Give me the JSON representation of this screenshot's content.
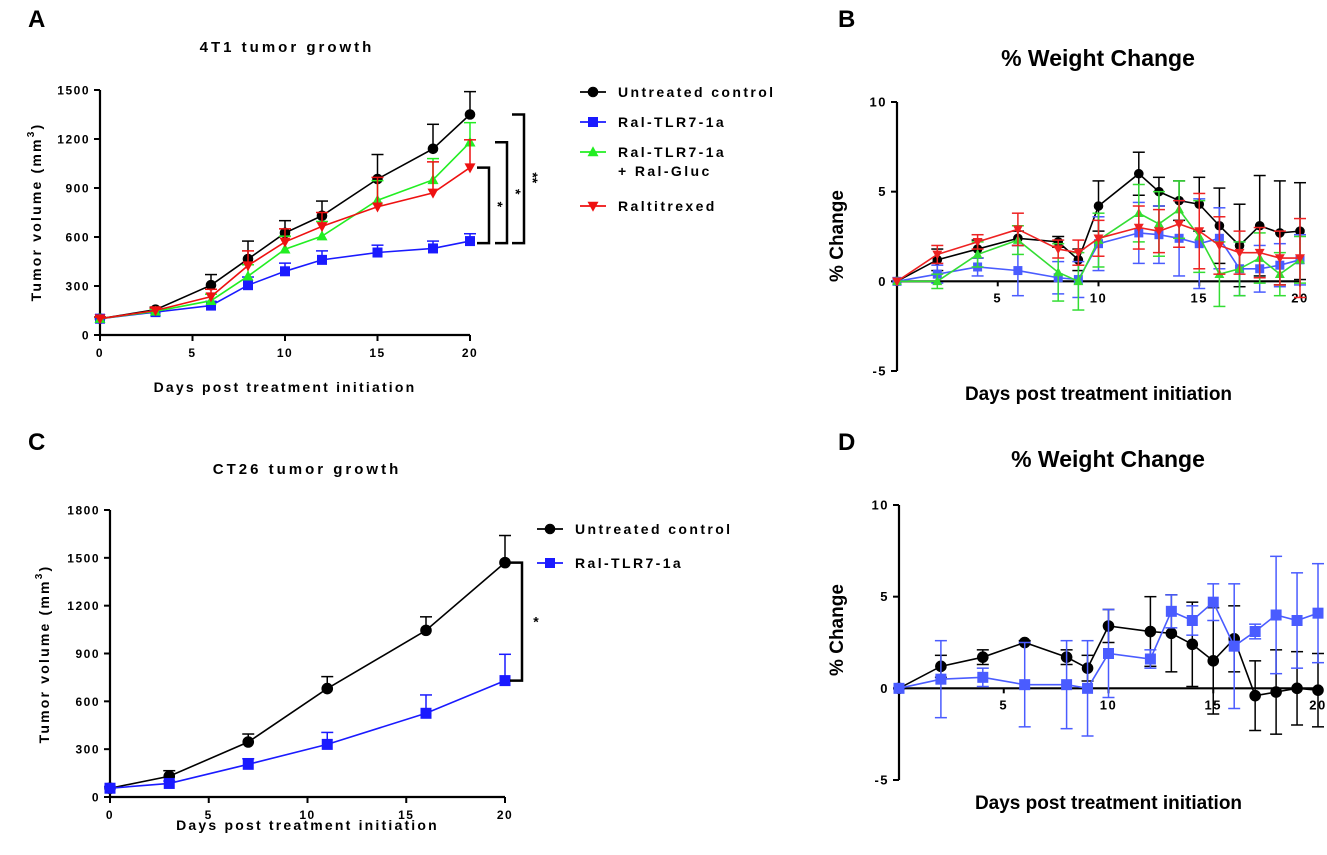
{
  "chart_data": [
    {
      "id": "A",
      "panel_label": "A",
      "type": "line",
      "title": "4T1 tumor growth",
      "xlabel": "Days post treatment initiation",
      "ylabel": "Tumor volume (mm",
      "ylabel_sup": "3",
      "ylabel_close": ")",
      "xlim": [
        0,
        20
      ],
      "ylim": [
        0,
        1500
      ],
      "xticks": [
        0,
        5,
        10,
        15,
        20
      ],
      "yticks": [
        0,
        300,
        600,
        900,
        1200,
        1500
      ],
      "legend_position": "right",
      "series": [
        {
          "name": "Untreated control",
          "color": "#000000",
          "marker": "circle",
          "x": [
            0,
            3,
            6,
            8,
            10,
            12,
            15,
            18,
            20
          ],
          "y": [
            100,
            155,
            305,
            465,
            625,
            730,
            955,
            1140,
            1350
          ],
          "err": [
            10,
            15,
            65,
            110,
            75,
            90,
            150,
            150,
            140
          ]
        },
        {
          "name": "Ral-TLR7-1a",
          "color": "#1a1aff",
          "marker": "square",
          "x": [
            0,
            3,
            6,
            8,
            10,
            12,
            15,
            18,
            20
          ],
          "y": [
            100,
            140,
            180,
            305,
            390,
            460,
            505,
            530,
            575
          ],
          "err": [
            10,
            12,
            25,
            50,
            50,
            55,
            45,
            45,
            45
          ]
        },
        {
          "name": "Ral-TLR7-1a",
          "name_line2": "+ Ral-Gluc",
          "color": "#22ee22",
          "marker": "triangle-up",
          "x": [
            0,
            3,
            6,
            8,
            10,
            12,
            15,
            18,
            20
          ],
          "y": [
            100,
            145,
            210,
            360,
            525,
            605,
            825,
            950,
            1180
          ],
          "err": [
            10,
            12,
            40,
            70,
            80,
            90,
            120,
            130,
            120
          ]
        },
        {
          "name": "Raltitrexed",
          "color": "#ee1111",
          "marker": "triangle-down",
          "x": [
            0,
            3,
            6,
            8,
            10,
            12,
            15,
            18,
            20
          ],
          "y": [
            100,
            150,
            235,
            425,
            570,
            665,
            785,
            870,
            1025
          ],
          "err": [
            10,
            15,
            45,
            90,
            80,
            85,
            180,
            190,
            170
          ]
        }
      ],
      "significance": [
        {
          "label": "*",
          "from": "Raltitrexed"
        },
        {
          "label": "*",
          "from": "Ral-TLR7-1a + Ral-Gluc"
        },
        {
          "label": "**",
          "from": "Untreated control"
        }
      ]
    },
    {
      "id": "B",
      "panel_label": "B",
      "type": "line",
      "title": "% Weight Change",
      "xlabel": "Days post treatment initiation",
      "ylabel": "% Change",
      "xlim": [
        0,
        20
      ],
      "ylim": [
        -5,
        10
      ],
      "xticks": [
        5,
        10,
        15,
        20
      ],
      "yticks": [
        -5,
        0,
        5,
        10
      ],
      "series": [
        {
          "name": "Untreated control",
          "color": "#000000",
          "marker": "circle",
          "x": [
            0,
            2,
            4,
            6,
            8,
            9,
            10,
            12,
            13,
            14,
            15,
            16,
            17,
            18,
            19,
            20
          ],
          "y": [
            0,
            1.2,
            1.8,
            2.4,
            2.2,
            1.2,
            4.2,
            6.0,
            5.0,
            4.5,
            4.3,
            3.1,
            2.0,
            3.1,
            2.7,
            2.8
          ],
          "err": [
            0,
            0.6,
            0.5,
            0.4,
            0.3,
            0.6,
            1.4,
            1.2,
            0.8,
            1.1,
            1.5,
            2.1,
            2.3,
            2.8,
            2.9,
            2.7
          ]
        },
        {
          "name": "Ral-TLR7-1a",
          "color": "#4a5cff",
          "marker": "square",
          "x": [
            0,
            2,
            4,
            6,
            8,
            9,
            10,
            12,
            13,
            14,
            15,
            16,
            17,
            18,
            19,
            20
          ],
          "y": [
            0,
            0.4,
            0.8,
            0.6,
            0.2,
            0.1,
            2.1,
            2.7,
            2.6,
            2.4,
            2.1,
            2.4,
            0.7,
            0.7,
            0.9,
            1.2
          ],
          "err": [
            0,
            0.5,
            0.5,
            1.4,
            0.9,
            1.0,
            1.5,
            1.7,
            1.6,
            2.1,
            2.5,
            1.7,
            1.5,
            1.3,
            1.2,
            1.4
          ]
        },
        {
          "name": "Ral-TLR7-1a + Ral-Gluc",
          "color": "#33dd33",
          "marker": "triangle-up",
          "x": [
            0,
            2,
            4,
            6,
            8,
            9,
            10,
            12,
            13,
            14,
            15,
            16,
            17,
            18,
            19,
            20
          ],
          "y": [
            0,
            0.0,
            1.5,
            2.3,
            0.5,
            0.0,
            2.3,
            3.8,
            3.2,
            4.0,
            2.5,
            0.4,
            0.7,
            1.3,
            0.4,
            1.2
          ],
          "err": [
            0,
            0.4,
            0.7,
            0.8,
            1.6,
            1.6,
            1.5,
            1.6,
            1.8,
            1.6,
            2.0,
            1.8,
            1.5,
            1.4,
            1.2,
            1.3
          ]
        },
        {
          "name": "Raltitrexed",
          "color": "#ee2222",
          "marker": "triangle-down",
          "x": [
            0,
            2,
            4,
            6,
            8,
            9,
            10,
            12,
            13,
            14,
            15,
            16,
            17,
            18,
            19,
            20
          ],
          "y": [
            0,
            1.5,
            2.2,
            2.9,
            1.8,
            1.6,
            2.4,
            3.0,
            2.8,
            3.2,
            2.8,
            2.0,
            1.6,
            1.6,
            1.3,
            1.3
          ],
          "err": [
            0,
            0.5,
            0.4,
            0.9,
            0.5,
            0.7,
            1.0,
            1.2,
            1.2,
            1.3,
            2.1,
            1.6,
            1.2,
            1.4,
            1.5,
            2.2
          ]
        }
      ]
    },
    {
      "id": "C",
      "panel_label": "C",
      "type": "line",
      "title": "CT26 tumor growth",
      "xlabel": "Days post treatment initiation",
      "ylabel": "Tumor volume (mm",
      "ylabel_sup": "3",
      "ylabel_close": ")",
      "xlim": [
        0,
        20
      ],
      "ylim": [
        0,
        1800
      ],
      "xticks": [
        0,
        5,
        10,
        15,
        20
      ],
      "yticks": [
        0,
        300,
        600,
        900,
        1200,
        1500,
        1800
      ],
      "legend_position": "right",
      "series": [
        {
          "name": "Untreated control",
          "color": "#000000",
          "marker": "circle",
          "x": [
            0,
            3,
            7,
            11,
            16,
            20
          ],
          "y": [
            55,
            130,
            345,
            680,
            1045,
            1470
          ],
          "err": [
            10,
            35,
            50,
            75,
            85,
            170
          ]
        },
        {
          "name": "Ral-TLR7-1a",
          "color": "#1a1aff",
          "marker": "square",
          "x": [
            0,
            3,
            7,
            11,
            16,
            20
          ],
          "y": [
            55,
            85,
            205,
            330,
            525,
            730
          ],
          "err": [
            10,
            15,
            35,
            75,
            115,
            165
          ]
        }
      ],
      "significance": [
        {
          "label": "*",
          "from": "Untreated control"
        }
      ]
    },
    {
      "id": "D",
      "panel_label": "D",
      "type": "line",
      "title": "% Weight Change",
      "xlabel": "Days post treatment initiation",
      "ylabel": "% Change",
      "xlim": [
        0,
        20
      ],
      "ylim": [
        -5,
        10
      ],
      "xticks": [
        5,
        10,
        15,
        20
      ],
      "yticks": [
        -5,
        0,
        5,
        10
      ],
      "series": [
        {
          "name": "Untreated control",
          "color": "#000000",
          "marker": "circle",
          "x": [
            0,
            2,
            4,
            6,
            8,
            9,
            10,
            12,
            13,
            14,
            15,
            16,
            17,
            18,
            19,
            20
          ],
          "y": [
            0,
            1.2,
            1.7,
            2.5,
            1.7,
            1.1,
            3.4,
            3.1,
            3.0,
            2.4,
            1.5,
            2.7,
            -0.4,
            -0.2,
            0.0,
            -0.1
          ],
          "err": [
            0,
            0.6,
            0.4,
            0.1,
            0.4,
            0.7,
            0.9,
            1.9,
            2.1,
            2.3,
            2.9,
            1.8,
            1.9,
            2.3,
            2.0,
            2.0
          ]
        },
        {
          "name": "Ral-TLR7-1a",
          "color": "#4a5cff",
          "marker": "square",
          "x": [
            0,
            2,
            4,
            6,
            8,
            9,
            10,
            12,
            13,
            14,
            15,
            16,
            17,
            18,
            19,
            20
          ],
          "y": [
            0,
            0.5,
            0.6,
            0.2,
            0.2,
            0.0,
            1.9,
            1.6,
            4.2,
            3.7,
            4.7,
            2.3,
            3.1,
            4.0,
            3.7,
            4.1
          ],
          "err": [
            0,
            2.1,
            0.5,
            2.3,
            2.4,
            2.6,
            2.4,
            0.5,
            0.9,
            0.8,
            1.0,
            3.4,
            0.4,
            3.2,
            2.6,
            2.7
          ]
        }
      ]
    }
  ]
}
